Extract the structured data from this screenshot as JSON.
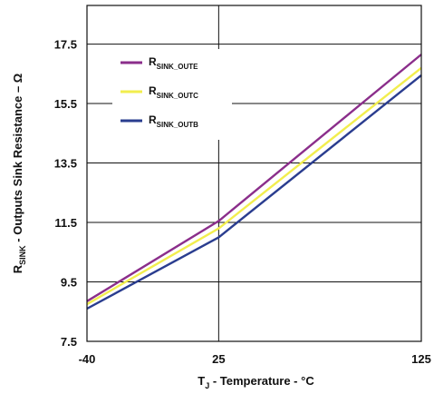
{
  "chart_data": {
    "type": "line",
    "xlabel": {
      "main": "T",
      "sub": "J",
      "rest": " - Temperature - °C"
    },
    "ylabel": {
      "main": "R",
      "sub": "SINK",
      "rest": " - Outputs Sink Resistance – Ω"
    },
    "xlim": [
      -40,
      125
    ],
    "ylim": [
      7.5,
      18.8
    ],
    "x_ticks": [
      -40,
      25,
      125
    ],
    "x_tick_labels": [
      "-40",
      "25",
      "125"
    ],
    "y_ticks": [
      7.5,
      9.5,
      11.5,
      13.5,
      15.5,
      17.5
    ],
    "y_tick_labels": [
      "7.5",
      "9.5",
      "11.5",
      "13.5",
      "15.5",
      "17.5"
    ],
    "vertical_gridlines": [
      25
    ],
    "grid": true,
    "legend_position": "top-left",
    "series": [
      {
        "label_main": "R",
        "label_sub": "SINK_OUTE",
        "color": "#8b2e8b",
        "x": [
          -40,
          25,
          125
        ],
        "y": [
          8.85,
          11.55,
          17.15
        ]
      },
      {
        "label_main": "R",
        "label_sub": "SINK_OUTC",
        "color": "#f2ee4e",
        "x": [
          -40,
          25,
          125
        ],
        "y": [
          8.75,
          11.3,
          16.7
        ]
      },
      {
        "label_main": "R",
        "label_sub": "SINK_OUTB",
        "color": "#2a3d8f",
        "x": [
          -40,
          25,
          125
        ],
        "y": [
          8.6,
          11.0,
          16.45
        ]
      }
    ]
  }
}
